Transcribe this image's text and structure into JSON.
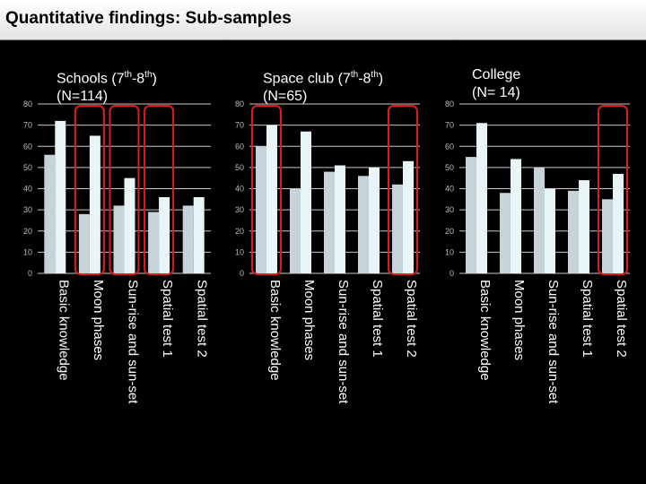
{
  "header": {
    "title": "Quantitative findings: Sub-samples"
  },
  "colors": {
    "series_a": "#c6d3d8",
    "series_b": "#e9f4f6",
    "gridline": "#c8c8c8",
    "plot_bg": "#000000",
    "highlight": "#e01b1b",
    "tick_text": "#bbbbbb"
  },
  "chart_data": [
    {
      "type": "bar",
      "title": {
        "line1": "Schools (7",
        "sup1": "th",
        "mid": "-8",
        "sup2": "th",
        "tail": ")",
        "line2": "(N=114)"
      },
      "categories": [
        "Basic knowledge",
        "Moon phases",
        "Sun-rise and sun-set",
        "Spatial test 1",
        "Spatial test 2"
      ],
      "series": [
        {
          "values": [
            56,
            28,
            32,
            29,
            32
          ]
        },
        {
          "values": [
            72,
            65,
            45,
            36,
            36
          ]
        }
      ],
      "ylim": [
        0,
        80
      ],
      "yticks": [
        "0",
        "10",
        "20",
        "30",
        "40",
        "50",
        "60",
        "70",
        "80"
      ],
      "grid": true,
      "highlighted_categories": [
        1,
        2,
        3
      ]
    },
    {
      "type": "bar",
      "title": {
        "line1": "Space club (7",
        "sup1": "th",
        "mid": "-8",
        "sup2": "th",
        "tail": ")",
        "line2": "(N=65)"
      },
      "categories": [
        "Basic knowledge",
        "Moon phases",
        "Sun-rise and sun-set",
        "Spatial test 1",
        "Spatial test 2"
      ],
      "series": [
        {
          "values": [
            60,
            40,
            48,
            46,
            42
          ]
        },
        {
          "values": [
            70,
            67,
            51,
            50,
            53
          ]
        }
      ],
      "ylim": [
        0,
        80
      ],
      "yticks": [
        "0",
        "10",
        "20",
        "30",
        "40",
        "50",
        "60",
        "70",
        "80"
      ],
      "grid": true,
      "highlighted_categories": [
        0,
        4
      ]
    },
    {
      "type": "bar",
      "title": {
        "line1": "College",
        "line2": "(N= 14)"
      },
      "categories": [
        "Basic knowledge",
        "Moon phases",
        "Sun-rise and sun-set",
        "Spatial test 1",
        "Spatial test 2"
      ],
      "series": [
        {
          "values": [
            55,
            38,
            50,
            39,
            35
          ]
        },
        {
          "values": [
            71,
            54,
            40,
            44,
            47
          ]
        }
      ],
      "ylim": [
        0,
        80
      ],
      "yticks": [
        "0",
        "10",
        "20",
        "30",
        "40",
        "50",
        "60",
        "70",
        "80"
      ],
      "grid": true,
      "highlighted_categories": [
        4
      ]
    }
  ]
}
